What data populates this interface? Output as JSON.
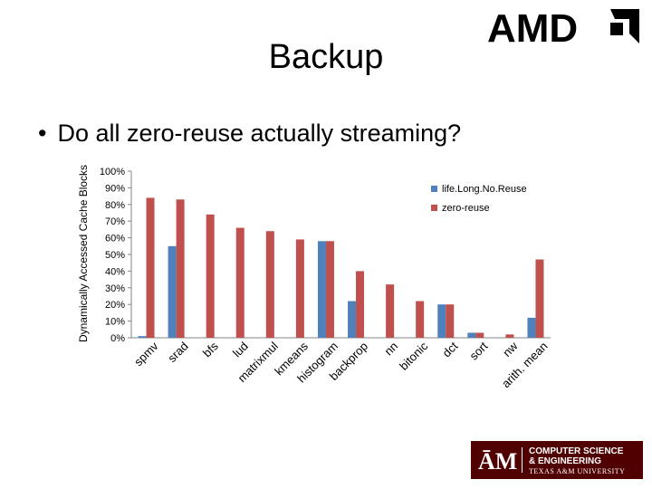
{
  "slide": {
    "title": "Backup",
    "bullet": "Do all zero-reuse actually streaming?",
    "bullet_marker": "•",
    "logo_amd": "AMD",
    "logo_tamu_line1": "COMPUTER SCIENCE",
    "logo_tamu_line2": "& ENGINEERING",
    "logo_tamu_line3": "TEXAS A&M UNIVERSITY",
    "logo_tamu_mark": "ĀM"
  },
  "colors": {
    "series1": "#4f81bd",
    "series2": "#c0504d",
    "logo_red": "#500000",
    "text": "#000000"
  },
  "chart_data": {
    "type": "bar",
    "title": "",
    "xlabel": "",
    "ylabel": "Dynamically Accessed Cache Blocks",
    "ylim": [
      0,
      100
    ],
    "yticks": [
      "0%",
      "10%",
      "20%",
      "30%",
      "40%",
      "50%",
      "60%",
      "70%",
      "80%",
      "90%",
      "100%"
    ],
    "grid": false,
    "legend": "top-right",
    "categories": [
      "spmv",
      "srad",
      "bfs",
      "lud",
      "matrixmul",
      "kmeans",
      "histogram",
      "backprop",
      "nn",
      "bitonic",
      "dct",
      "sort",
      "nw",
      "arith. mean"
    ],
    "series": [
      {
        "name": "life.Long.No.Reuse",
        "values": [
          1,
          55,
          0,
          0,
          0,
          0,
          58,
          22,
          0,
          0,
          20,
          3,
          0,
          12
        ]
      },
      {
        "name": "zero-reuse",
        "values": [
          84,
          83,
          74,
          66,
          64,
          59,
          58,
          40,
          32,
          22,
          20,
          3,
          2,
          47
        ]
      }
    ]
  }
}
